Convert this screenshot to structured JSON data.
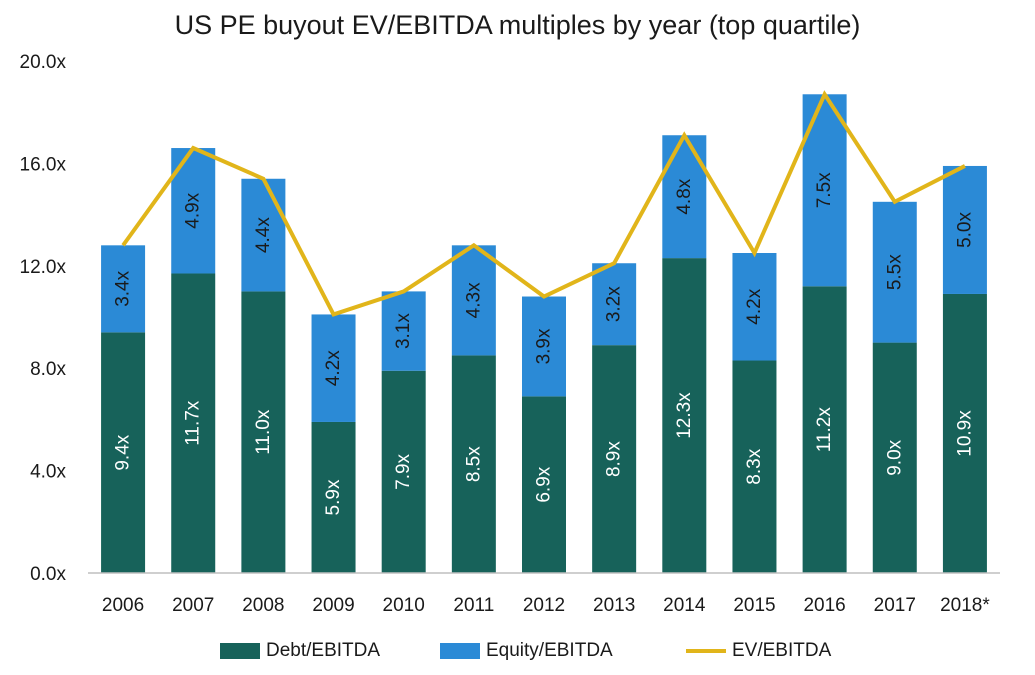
{
  "chart_data": {
    "type": "bar",
    "stacked": true,
    "title": "US PE buyout EV/EBITDA multiples by year (top quartile)",
    "categories": [
      "2006",
      "2007",
      "2008",
      "2009",
      "2010",
      "2011",
      "2012",
      "2013",
      "2014",
      "2015",
      "2016",
      "2017",
      "2018*"
    ],
    "series": [
      {
        "name": "Debt/EBITDA",
        "type": "bar",
        "color": "#17625a",
        "values": [
          9.4,
          11.7,
          11.0,
          5.9,
          7.9,
          8.5,
          6.9,
          8.9,
          12.3,
          8.3,
          11.2,
          9.0,
          10.9
        ],
        "labels": [
          "9.4x",
          "11.7x",
          "11.0x",
          "5.9x",
          "7.9x",
          "8.5x",
          "6.9x",
          "8.9x",
          "12.3x",
          "8.3x",
          "11.2x",
          "9.0x",
          "10.9x"
        ]
      },
      {
        "name": "Equity/EBITDA",
        "type": "bar",
        "color": "#2b8ad6",
        "values": [
          3.4,
          4.9,
          4.4,
          4.2,
          3.1,
          4.3,
          3.9,
          3.2,
          4.8,
          4.2,
          7.5,
          5.5,
          5.0
        ],
        "labels": [
          "3.4x",
          "4.9x",
          "4.4x",
          "4.2x",
          "3.1x",
          "4.3x",
          "3.9x",
          "3.2x",
          "4.8x",
          "4.2x",
          "7.5x",
          "5.5x",
          "5.0x"
        ]
      },
      {
        "name": "EV/EBITDA",
        "type": "line",
        "color": "#e1b51a",
        "values": [
          12.8,
          16.6,
          15.4,
          10.1,
          11.0,
          12.8,
          10.8,
          12.1,
          17.1,
          12.5,
          18.7,
          14.5,
          15.9
        ]
      }
    ],
    "ylim": [
      0,
      20
    ],
    "yticks": [
      0,
      4,
      8,
      12,
      16,
      20
    ],
    "ytick_labels": [
      "0.0x",
      "4.0x",
      "8.0x",
      "12.0x",
      "16.0x",
      "20.0x"
    ],
    "xlabel": "",
    "ylabel": "",
    "grid": false,
    "legend_position": "bottom"
  }
}
